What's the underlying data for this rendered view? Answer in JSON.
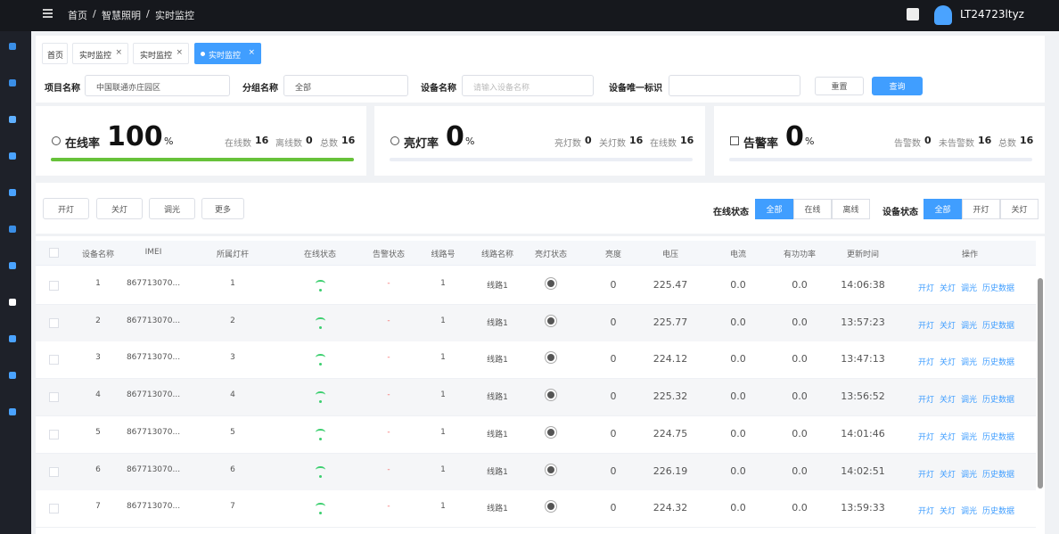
{
  "header": {
    "breadcrumb": [
      "首页",
      "智慧照明",
      "实时监控"
    ],
    "separator": "/",
    "user": "LT24723ltyz"
  },
  "tabs": [
    "首页",
    "实时监控",
    "实时监控",
    "实时监控"
  ],
  "filters": {
    "project_label": "项目名称",
    "project_value": "中国联通亦庄园区",
    "group_label": "分组名称",
    "group_value": "全部",
    "device_label": "设备名称",
    "device_placeholder": "请输入设备名称",
    "uid_label": "设备唯一标识",
    "reset": "重置",
    "search": "查询"
  },
  "stats": [
    {
      "label": "在线率",
      "value": 100,
      "unit": "%",
      "items": [
        {
          "label": "在线数",
          "value": 16
        },
        {
          "label": "离线数",
          "value": 0
        },
        {
          "label": "总数",
          "value": 16
        }
      ]
    },
    {
      "label": "亮灯率",
      "value": 0,
      "unit": "%",
      "items": [
        {
          "label": "亮灯数",
          "value": 0
        },
        {
          "label": "关灯数",
          "value": 16
        },
        {
          "label": "在线数",
          "value": 16
        }
      ]
    },
    {
      "label": "告警率",
      "value": 0,
      "unit": "%",
      "items": [
        {
          "label": "告警数",
          "value": 0
        },
        {
          "label": "未告警数",
          "value": 16
        },
        {
          "label": "总数",
          "value": 16
        }
      ]
    }
  ],
  "toolbar": {
    "buttons": [
      "开灯",
      "关灯",
      "调光",
      "更多"
    ],
    "online_label": "在线状态",
    "online_options": [
      "全部",
      "在线",
      "离线"
    ],
    "device_label": "设备状态",
    "device_options": [
      "全部",
      "开灯",
      "关灯"
    ]
  },
  "table": {
    "columns": [
      "设备名称",
      "IMEI",
      "所属灯杆",
      "在线状态",
      "告警状态",
      "线路号",
      "线路名称",
      "亮灯状态",
      "亮度",
      "电压",
      "电流",
      "有功功率",
      "更新时间",
      "操作"
    ],
    "rows": [
      [
        "1",
        "867713070...",
        "1",
        "-",
        "1",
        "线路1",
        "0",
        "225.47",
        "0.0",
        "0.0",
        "14:06:38"
      ],
      [
        "2",
        "867713070...",
        "2",
        "-",
        "1",
        "线路1",
        "0",
        "225.77",
        "0.0",
        "0.0",
        "13:57:23"
      ],
      [
        "3",
        "867713070...",
        "3",
        "-",
        "1",
        "线路1",
        "0",
        "224.12",
        "0.0",
        "0.0",
        "13:47:13"
      ],
      [
        "4",
        "867713070...",
        "4",
        "-",
        "1",
        "线路1",
        "0",
        "225.32",
        "0.0",
        "0.0",
        "13:56:52"
      ],
      [
        "5",
        "867713070...",
        "5",
        "-",
        "1",
        "线路1",
        "0",
        "224.75",
        "0.0",
        "0.0",
        "14:01:46"
      ],
      [
        "6",
        "867713070...",
        "6",
        "-",
        "1",
        "线路1",
        "0",
        "226.19",
        "0.0",
        "0.0",
        "14:02:51"
      ],
      [
        "7",
        "867713070...",
        "7",
        "-",
        "1",
        "线路1",
        "0",
        "224.32",
        "0.0",
        "0.0",
        "13:59:33"
      ]
    ],
    "actions": [
      "开灯",
      "关灯",
      "调光",
      "历史数据"
    ]
  }
}
